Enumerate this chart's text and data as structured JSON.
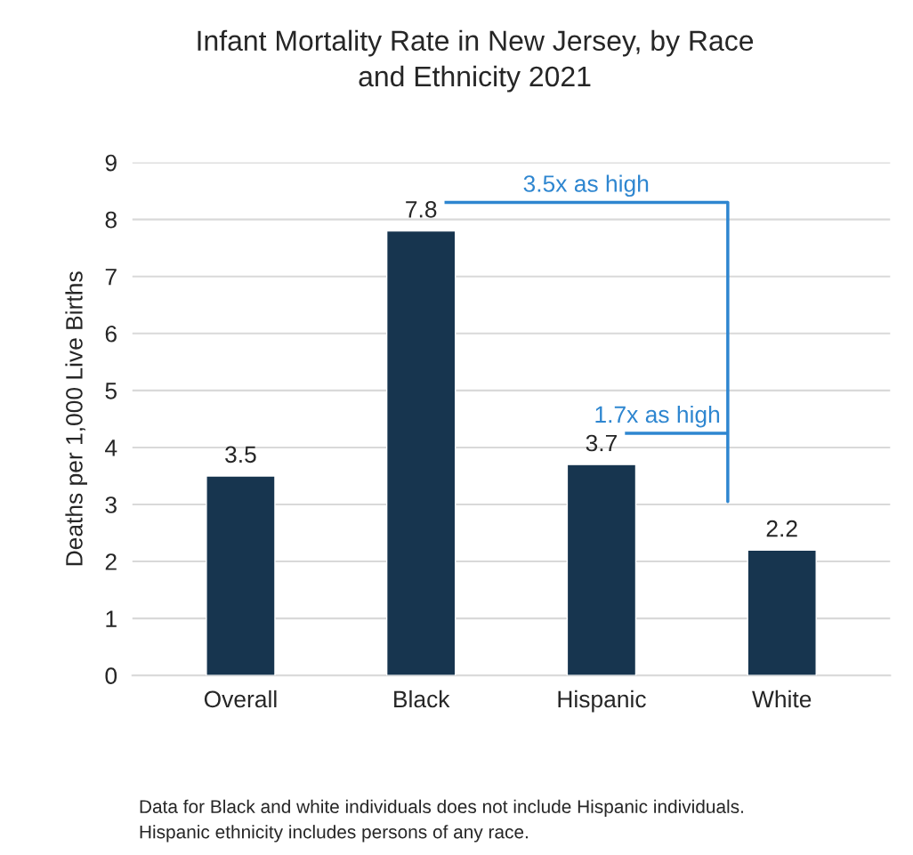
{
  "chart_data": {
    "type": "bar",
    "title": "Infant Mortality Rate in New Jersey, by Race\nand Ethnicity 2021",
    "ylabel": "Deaths per 1,000 Live Births",
    "categories": [
      "Overall",
      "Black",
      "Hispanic",
      "White"
    ],
    "values": [
      3.5,
      7.8,
      3.7,
      2.2
    ],
    "color": "#17354f",
    "ylim": [
      0,
      9
    ],
    "yticks": [
      0,
      1,
      2,
      3,
      4,
      5,
      6,
      7,
      8,
      9
    ],
    "grid": "y",
    "data_labels": true,
    "legend": false,
    "annotations": [
      "3.5x as high",
      "1.7x as high",
      "Data for Black and white individuals does not include Hispanic individuals.\nHispanic ethnicity includes persons of any race."
    ]
  }
}
